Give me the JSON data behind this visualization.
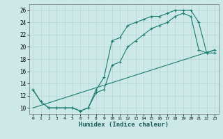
{
  "xlabel": "Humidex (Indice chaleur)",
  "xlim": [
    -0.5,
    23.5
  ],
  "ylim": [
    9,
    27
  ],
  "yticks": [
    10,
    12,
    14,
    16,
    18,
    20,
    22,
    24,
    26
  ],
  "xticks": [
    0,
    1,
    2,
    3,
    4,
    5,
    6,
    7,
    8,
    9,
    10,
    11,
    12,
    13,
    14,
    15,
    16,
    17,
    18,
    19,
    20,
    21,
    22,
    23
  ],
  "background_color": "#cce9e7",
  "grid_color": "#b8d8d6",
  "line_color": "#1a7a6e",
  "line1_x": [
    0,
    1,
    2,
    3,
    4,
    5,
    6,
    7,
    8,
    9,
    10,
    11,
    12,
    13,
    14,
    15,
    16,
    17,
    18,
    19,
    20,
    21,
    22,
    23
  ],
  "line1_y": [
    13,
    11,
    10,
    10,
    10,
    10,
    9.5,
    10,
    13,
    15,
    21,
    21.5,
    23.5,
    24,
    24.5,
    25,
    25,
    25.5,
    26,
    26,
    26,
    24,
    19,
    19.5
  ],
  "line2_x": [
    0,
    1,
    2,
    3,
    4,
    5,
    6,
    7,
    8,
    9,
    10,
    11,
    12,
    13,
    14,
    15,
    16,
    17,
    18,
    19,
    20,
    21,
    22,
    23
  ],
  "line2_y": [
    13,
    11,
    10,
    10,
    10,
    10,
    9.5,
    10,
    12.5,
    13,
    17,
    17.5,
    20,
    21,
    22,
    23,
    23.5,
    24,
    25,
    25.5,
    25,
    19.5,
    19,
    19
  ],
  "line3_x": [
    0,
    23
  ],
  "line3_y": [
    10,
    19.5
  ]
}
